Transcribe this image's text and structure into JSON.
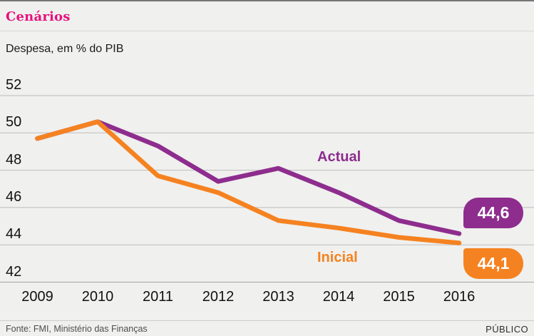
{
  "header": {
    "title": "Cenários",
    "subtitle": "Despesa, em % do PIB"
  },
  "chart_data": {
    "type": "line",
    "title": "Cenários",
    "ylabel": "Despesa, em % do PIB",
    "xlabel": "",
    "categories": [
      "2009",
      "2010",
      "2011",
      "2012",
      "2013",
      "2014",
      "2015",
      "2016"
    ],
    "series": [
      {
        "name": "Actual",
        "color": "#8e2d8e",
        "values": [
          49.7,
          50.6,
          49.3,
          47.4,
          48.1,
          46.8,
          45.3,
          44.6
        ],
        "end_label": "44,6"
      },
      {
        "name": "Inicial",
        "color": "#f58220",
        "values": [
          49.7,
          50.6,
          47.7,
          46.8,
          45.3,
          44.9,
          44.4,
          44.1
        ],
        "end_label": "44,1"
      }
    ],
    "ylim": [
      41.5,
      52.5
    ],
    "yticks": [
      52,
      50,
      48,
      46,
      44,
      42
    ],
    "grid": "horizontal",
    "legend": "inline-labels"
  },
  "colors": {
    "title_accent": "#e5117d",
    "actual": "#8e2d8e",
    "inicial": "#f58220",
    "background": "#f0f0ee",
    "gridline": "#bdbdbd"
  },
  "footer": {
    "source": "Fonte: FMI, Ministério das Finanças",
    "brand": "PÚBLICO"
  }
}
